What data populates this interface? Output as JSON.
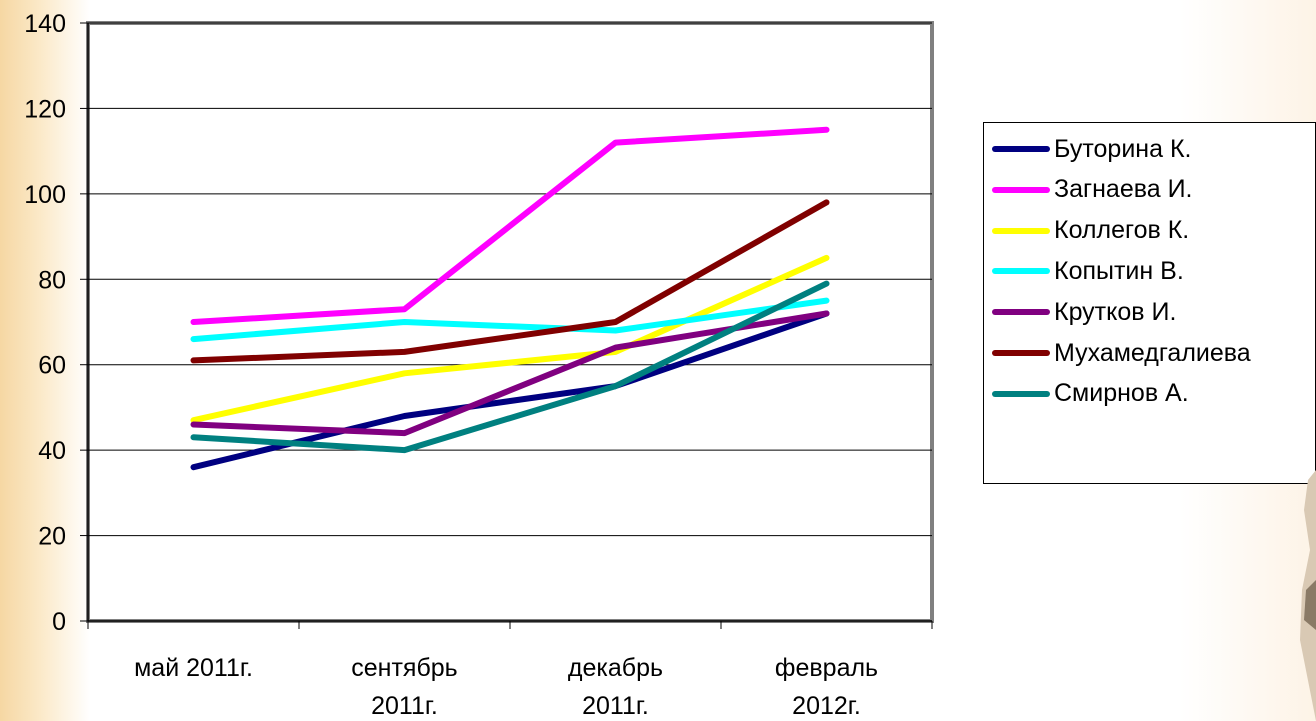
{
  "chart_data": {
    "type": "line",
    "title": "",
    "xlabel": "",
    "ylabel": "",
    "ylim": [
      0,
      140
    ],
    "yticks": [
      "0",
      "20",
      "40",
      "60",
      "80",
      "100",
      "120",
      "140"
    ],
    "categories": [
      [
        "май 2011г."
      ],
      [
        "сентябрь",
        "2011г."
      ],
      [
        "декабрь",
        "2011г."
      ],
      [
        "февраль",
        "2012г."
      ]
    ],
    "grid": true,
    "legend_position": "right",
    "series": [
      {
        "name": "Буторина К.",
        "color": "#000080",
        "values": [
          36,
          48,
          55,
          72
        ]
      },
      {
        "name": "Загнаева И.",
        "color": "#ff00ff",
        "values": [
          70,
          73,
          112,
          115
        ]
      },
      {
        "name": "Коллегов К.",
        "color": "#ffff00",
        "values": [
          47,
          58,
          63,
          85
        ]
      },
      {
        "name": "Копытин В.",
        "color": "#00ffff",
        "values": [
          66,
          70,
          68,
          75
        ]
      },
      {
        "name": "Крутков И.",
        "color": "#800080",
        "values": [
          46,
          44,
          64,
          72
        ]
      },
      {
        "name": "Мухамедгалиева",
        "color": "#800000",
        "values": [
          61,
          63,
          70,
          98
        ]
      },
      {
        "name": "Смирнов А.",
        "color": "#008080",
        "values": [
          43,
          40,
          55,
          79
        ]
      }
    ]
  }
}
